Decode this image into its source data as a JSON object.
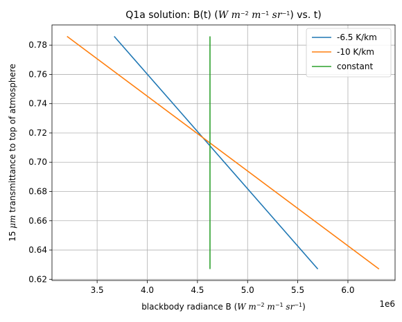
{
  "chart_data": {
    "type": "line",
    "title_prefix": "Q1a solution:  B(t) (",
    "title_units_parts": [
      {
        "t": "W",
        "style": "italic"
      },
      {
        "t": " m",
        "style": "italic"
      },
      {
        "t": "−2",
        "style": "sup"
      },
      {
        "t": " m",
        "style": "italic"
      },
      {
        "t": "−1",
        "style": "sup"
      },
      {
        "t": " sr",
        "style": "italic"
      },
      {
        "t": "−1",
        "style": "sup"
      }
    ],
    "title_suffix": ") vs. t)",
    "xlabel_prefix": "blackbody radiance B (",
    "xlabel_units_parts": [
      {
        "t": "W",
        "style": "italic"
      },
      {
        "t": " m",
        "style": "italic"
      },
      {
        "t": "−2",
        "style": "sup"
      },
      {
        "t": " m",
        "style": "italic"
      },
      {
        "t": "−1",
        "style": "sup"
      },
      {
        "t": " sr",
        "style": "italic"
      },
      {
        "t": "−1",
        "style": "sup"
      }
    ],
    "xlabel_suffix": ")",
    "ylabel_parts": [
      {
        "t": "15 ",
        "style": "normal"
      },
      {
        "t": "μm",
        "style": "italic"
      },
      {
        "t": " transmittance to top of atmosphere",
        "style": "normal"
      }
    ],
    "x_offset_text": "1e6",
    "x_multiplier": 1000000,
    "xlim": [
      3050000,
      6470000
    ],
    "ylim": [
      0.6192,
      0.7938
    ],
    "x_ticks": [
      3.5,
      4.0,
      4.5,
      5.0,
      5.5,
      6.0
    ],
    "x_tick_labels": [
      "3.5",
      "4.0",
      "4.5",
      "5.0",
      "5.5",
      "6.0"
    ],
    "y_ticks": [
      0.62,
      0.64,
      0.66,
      0.68,
      0.7,
      0.72,
      0.74,
      0.76,
      0.78
    ],
    "y_tick_labels": [
      "0.62",
      "0.64",
      "0.66",
      "0.68",
      "0.70",
      "0.72",
      "0.74",
      "0.76",
      "0.78"
    ],
    "grid": true,
    "legend_position": "top-right",
    "series": [
      {
        "name": "-6.5 K/km",
        "color": "#1f77b4",
        "x": [
          3670000,
          5700000
        ],
        "y": [
          0.786,
          0.627
        ]
      },
      {
        "name": "-10 K/km",
        "color": "#ff7f0e",
        "x": [
          3200000,
          6310000
        ],
        "y": [
          0.786,
          0.627
        ]
      },
      {
        "name": "constant",
        "color": "#2ca02c",
        "x": [
          4625000,
          4625000
        ],
        "y": [
          0.786,
          0.627
        ]
      }
    ]
  }
}
